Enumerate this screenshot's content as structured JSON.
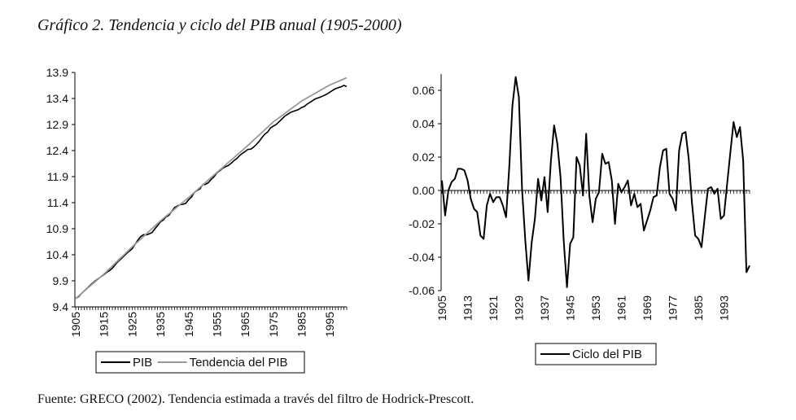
{
  "title": "Gráfico 2. Tendencia y ciclo del PIB anual (1905-2000)",
  "source": "Fuente: GRECO (2002). Tendencia estimada a través del filtro de Hodrick-Prescott.",
  "colors": {
    "pib": "#000000",
    "trend": "#999999",
    "cycle": "#000000",
    "axis": "#000000"
  },
  "chart_data": [
    {
      "type": "line",
      "title": "",
      "xlabel": "",
      "ylabel": "",
      "xlim": [
        1905,
        2001
      ],
      "ylim": [
        9.4,
        13.9
      ],
      "yticks": [
        "13.9",
        "13.4",
        "12.9",
        "12.4",
        "11.9",
        "11.4",
        "10.9",
        "10.4",
        "9.9",
        "9.4"
      ],
      "ytick_values": [
        13.9,
        13.4,
        12.9,
        12.4,
        11.9,
        11.4,
        10.9,
        10.4,
        9.9,
        9.4
      ],
      "xticks": [
        "1905",
        "1915",
        "1925",
        "1935",
        "1945",
        "1955",
        "1965",
        "1975",
        "1985",
        "1995"
      ],
      "xtick_values": [
        1905,
        1915,
        1925,
        1935,
        1945,
        1955,
        1965,
        1975,
        1985,
        1995
      ],
      "grid": false,
      "legend_position": "bottom",
      "x_start": 1905,
      "series": [
        {
          "name": "PIB",
          "values": [
            9.566,
            9.592,
            9.654,
            9.706,
            9.755,
            9.808,
            9.855,
            9.901,
            9.942,
            9.978,
            10.019,
            10.064,
            10.097,
            10.142,
            10.211,
            10.27,
            10.317,
            10.372,
            10.424,
            10.471,
            10.516,
            10.596,
            10.681,
            10.748,
            10.786,
            10.781,
            10.8,
            10.826,
            10.895,
            10.959,
            11.032,
            11.064,
            11.128,
            11.157,
            11.233,
            11.304,
            11.338,
            11.363,
            11.37,
            11.387,
            11.458,
            11.507,
            11.596,
            11.635,
            11.663,
            11.745,
            11.753,
            11.785,
            11.847,
            11.899,
            11.97,
            12.011,
            12.059,
            12.089,
            12.111,
            12.155,
            12.207,
            12.246,
            12.3,
            12.346,
            12.381,
            12.424,
            12.426,
            12.466,
            12.518,
            12.578,
            12.652,
            12.716,
            12.758,
            12.835,
            12.87,
            12.902,
            12.951,
            13.003,
            13.059,
            13.094,
            13.129,
            13.152,
            13.17,
            13.189,
            13.226,
            13.248,
            13.292,
            13.327,
            13.363,
            13.396,
            13.414,
            13.436,
            13.459,
            13.486,
            13.521,
            13.556,
            13.587,
            13.608,
            13.623,
            13.652,
            13.63
          ]
        },
        {
          "name": "Tendencia del PIB",
          "values": [
            9.56,
            9.607,
            9.654,
            9.701,
            9.748,
            9.795,
            9.842,
            9.889,
            9.936,
            9.983,
            10.03,
            10.082,
            10.134,
            10.186,
            10.238,
            10.29,
            10.342,
            10.394,
            10.446,
            10.498,
            10.55,
            10.6,
            10.65,
            10.7,
            10.75,
            10.8,
            10.85,
            10.9,
            10.95,
            11.0,
            11.05,
            11.095,
            11.14,
            11.185,
            11.23,
            11.275,
            11.32,
            11.365,
            11.41,
            11.455,
            11.5,
            11.548,
            11.596,
            11.644,
            11.692,
            11.74,
            11.788,
            11.836,
            11.884,
            11.932,
            11.98,
            12.027,
            12.074,
            12.121,
            12.168,
            12.215,
            12.262,
            12.309,
            12.356,
            12.403,
            12.45,
            12.5,
            12.55,
            12.6,
            12.65,
            12.7,
            12.75,
            12.8,
            12.85,
            12.9,
            12.95,
            12.99,
            13.03,
            13.07,
            13.11,
            13.15,
            13.19,
            13.23,
            13.27,
            13.31,
            13.35,
            13.381,
            13.412,
            13.443,
            13.474,
            13.505,
            13.536,
            13.567,
            13.598,
            13.629,
            13.66,
            13.683,
            13.706,
            13.729,
            13.752,
            13.775,
            13.8
          ]
        }
      ]
    },
    {
      "type": "line",
      "title": "",
      "xlabel": "",
      "ylabel": "",
      "xlim": [
        1905,
        2001
      ],
      "ylim": [
        -0.06,
        0.07
      ],
      "yticks": [
        "0.06",
        "0.04",
        "0.02",
        "0.00",
        "-0.02",
        "-0.04",
        "-0.06"
      ],
      "ytick_values": [
        0.06,
        0.04,
        0.02,
        0.0,
        -0.02,
        -0.04,
        -0.06
      ],
      "xticks": [
        "1905",
        "1913",
        "1921",
        "1929",
        "1937",
        "1945",
        "1953",
        "1961",
        "1969",
        "1977",
        "1985",
        "1993"
      ],
      "xtick_values": [
        1905,
        1913,
        1921,
        1929,
        1937,
        1945,
        1953,
        1961,
        1969,
        1977,
        1985,
        1993
      ],
      "grid": false,
      "legend_position": "bottom",
      "x_start": 1905,
      "series": [
        {
          "name": "Ciclo del PIB",
          "values": [
            0.006,
            -0.015,
            0.0,
            0.005,
            0.007,
            0.013,
            0.013,
            0.012,
            0.006,
            -0.005,
            -0.011,
            -0.013,
            -0.027,
            -0.029,
            -0.009,
            -0.002,
            -0.007,
            -0.004,
            -0.004,
            -0.009,
            -0.016,
            0.014,
            0.051,
            0.068,
            0.056,
            0.001,
            -0.03,
            -0.054,
            -0.031,
            -0.017,
            0.007,
            -0.006,
            0.008,
            -0.013,
            0.018,
            0.039,
            0.028,
            0.008,
            -0.03,
            -0.058,
            -0.032,
            -0.028,
            0.02,
            0.015,
            -0.003,
            0.034,
            -0.003,
            -0.019,
            -0.005,
            -0.001,
            0.022,
            0.016,
            0.017,
            0.006,
            -0.02,
            0.004,
            -0.001,
            0.002,
            0.006,
            -0.009,
            -0.002,
            -0.01,
            -0.008,
            -0.024,
            -0.018,
            -0.012,
            -0.004,
            -0.003,
            0.014,
            0.024,
            0.025,
            -0.002,
            -0.005,
            -0.012,
            0.024,
            0.034,
            0.035,
            0.019,
            -0.007,
            -0.027,
            -0.029,
            -0.034,
            -0.016,
            0.001,
            0.002,
            -0.002,
            0.001,
            -0.017,
            -0.015,
            0.004,
            0.023,
            0.041,
            0.032,
            0.038,
            0.018,
            -0.049,
            -0.045
          ]
        }
      ]
    }
  ]
}
